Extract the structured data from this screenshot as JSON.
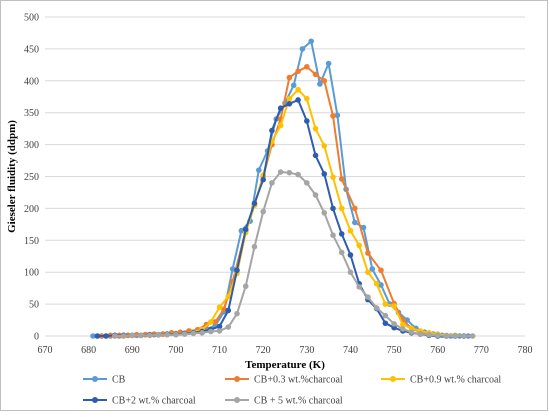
{
  "chart_data": {
    "type": "line",
    "xlabel": "Temperature (K)",
    "ylabel": "Gieseler fluidity (ddpm)",
    "xlim": [
      670,
      780
    ],
    "ylim": [
      0,
      500
    ],
    "xticks": [
      670,
      680,
      690,
      700,
      710,
      720,
      730,
      740,
      750,
      760,
      770,
      780
    ],
    "yticks": [
      0,
      50,
      100,
      150,
      200,
      250,
      300,
      350,
      400,
      450,
      500
    ],
    "grid": "horizontal",
    "legend_position": "bottom",
    "series": [
      {
        "name": "CB",
        "color": "#5b9bd5",
        "x": [
          681,
          683,
          685,
          687,
          689,
          691,
          693,
          695,
          697,
          699,
          701,
          703,
          705,
          707,
          709,
          711,
          713,
          715,
          717,
          719,
          721,
          723,
          725,
          727,
          729,
          731,
          733,
          735,
          737,
          739,
          741,
          743,
          745,
          747,
          749,
          751,
          753,
          755,
          757,
          759,
          761,
          763,
          765,
          767
        ],
        "y": [
          0,
          0,
          0,
          0,
          1,
          1,
          2,
          2,
          3,
          4,
          5,
          6,
          8,
          11,
          16,
          38,
          105,
          165,
          180,
          260,
          290,
          340,
          365,
          393,
          450,
          462,
          395,
          427,
          346,
          230,
          178,
          170,
          105,
          80,
          50,
          37,
          25,
          12,
          6,
          3,
          1,
          0,
          0,
          0
        ]
      },
      {
        "name": "CB+0.3 wt.%charcoal",
        "color": "#ed7d31",
        "x": [
          683,
          685,
          687,
          689,
          691,
          693,
          695,
          697,
          699,
          701,
          703,
          705,
          707,
          709,
          711,
          713,
          716,
          718,
          720,
          722,
          724,
          726,
          728,
          730,
          732,
          734,
          736,
          738,
          741,
          744,
          747,
          750,
          752,
          754,
          756,
          758,
          760,
          762,
          764,
          766
        ],
        "y": [
          0,
          1,
          1,
          1,
          2,
          2,
          3,
          3,
          5,
          6,
          8,
          10,
          18,
          22,
          42,
          85,
          165,
          205,
          250,
          300,
          340,
          405,
          415,
          422,
          410,
          400,
          345,
          246,
          200,
          130,
          103,
          51,
          25,
          12,
          6,
          3,
          1,
          0,
          0,
          0
        ]
      },
      {
        "name": "CB+0.9 wt.% charcoal",
        "color": "#ffc000",
        "x": [
          686,
          688,
          690,
          692,
          694,
          696,
          698,
          700,
          702,
          704,
          706,
          708,
          710,
          712,
          714,
          716,
          718,
          720,
          722,
          724,
          726,
          728,
          730,
          732,
          734,
          736,
          738,
          740,
          742,
          744,
          746,
          748,
          750,
          752,
          754,
          756,
          758,
          760,
          762,
          764,
          766,
          768
        ],
        "y": [
          0,
          1,
          1,
          1,
          2,
          2,
          3,
          4,
          4,
          6,
          10,
          22,
          45,
          62,
          98,
          162,
          205,
          252,
          305,
          330,
          372,
          386,
          372,
          325,
          298,
          249,
          200,
          165,
          142,
          100,
          82,
          50,
          47,
          18,
          12,
          8,
          5,
          3,
          1,
          1,
          0,
          0
        ]
      },
      {
        "name": "CB+2 wt.% charcoal",
        "color": "#2e5dad",
        "x": [
          682,
          684,
          686,
          688,
          690,
          692,
          694,
          696,
          698,
          700,
          702,
          704,
          706,
          708,
          710,
          712,
          714,
          716,
          718,
          720,
          722,
          724,
          726,
          728,
          730,
          732,
          734,
          736,
          738,
          740,
          742,
          744,
          746,
          748,
          750,
          752,
          754,
          756,
          758,
          760,
          762,
          764,
          766
        ],
        "y": [
          0,
          0,
          1,
          1,
          1,
          1,
          2,
          2,
          3,
          3,
          4,
          5,
          7,
          10,
          15,
          40,
          103,
          167,
          208,
          245,
          322,
          357,
          364,
          370,
          337,
          283,
          254,
          200,
          160,
          127,
          82,
          57,
          43,
          20,
          13,
          8,
          5,
          3,
          1,
          0,
          0,
          0,
          0
        ]
      },
      {
        "name": "CB + 5 wt.% charcoal",
        "color": "#a5a5a5",
        "x": [
          686,
          688,
          690,
          692,
          694,
          696,
          698,
          700,
          702,
          704,
          706,
          708,
          710,
          712,
          714,
          716,
          718,
          720,
          722,
          724,
          726,
          728,
          730,
          732,
          734,
          736,
          738,
          740,
          742,
          744,
          746,
          748,
          750,
          752,
          754,
          756,
          758,
          760,
          762,
          764,
          766,
          768
        ],
        "y": [
          0,
          0,
          1,
          1,
          1,
          2,
          2,
          2,
          3,
          4,
          5,
          7,
          8,
          14,
          35,
          78,
          140,
          195,
          240,
          257,
          256,
          253,
          240,
          221,
          193,
          158,
          131,
          100,
          77,
          61,
          44,
          32,
          19,
          11,
          6,
          3,
          2,
          1,
          0,
          0,
          0,
          0
        ]
      }
    ]
  }
}
